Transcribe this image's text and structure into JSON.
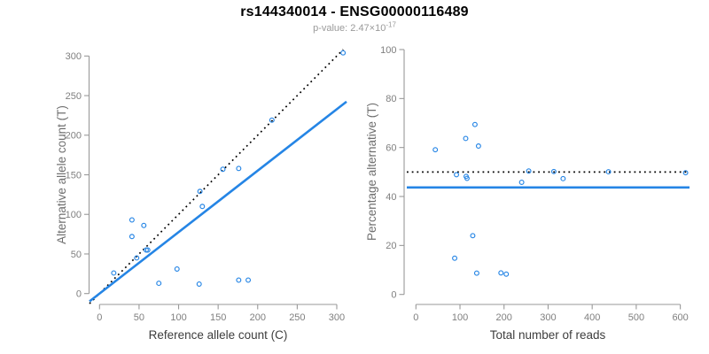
{
  "title": "rs144340014 - ENSG00000116489",
  "subtitle": {
    "text": "p-value: 2.47×10",
    "exponent": "-17"
  },
  "colors": {
    "accent_blue": "#2585E5",
    "dotted_black": "#000000",
    "axis_line": "#999999",
    "tick_label": "#7f7f7f",
    "x_axis_title": "#3d3d3d",
    "y_axis_title": "#6f6f6f",
    "subtitle_gray": "#9a9a9a",
    "title_black": "#000000"
  },
  "chart_data": [
    {
      "type": "scatter",
      "name": "allele-counts-panel",
      "title": "",
      "xlabel": "Reference allele count (C)",
      "ylabel": "Alternative allele count (T)",
      "xlim": [
        0,
        300
      ],
      "ylim": [
        0,
        300
      ],
      "xticks": [
        0,
        50,
        100,
        150,
        200,
        250,
        300
      ],
      "yticks": [
        0,
        50,
        100,
        150,
        200,
        250,
        300
      ],
      "grid": false,
      "legend": "none",
      "points": [
        [
          18,
          26
        ],
        [
          41,
          72
        ],
        [
          41,
          93
        ],
        [
          47,
          45
        ],
        [
          56,
          86
        ],
        [
          59,
          55
        ],
        [
          61,
          55
        ],
        [
          75,
          13
        ],
        [
          98,
          31
        ],
        [
          126,
          12
        ],
        [
          127,
          129
        ],
        [
          130,
          110
        ],
        [
          156,
          157
        ],
        [
          176,
          17
        ],
        [
          176,
          158
        ],
        [
          188,
          17
        ],
        [
          218,
          219
        ],
        [
          308,
          304
        ]
      ],
      "lines": [
        {
          "name": "identity-line",
          "kind": "abline",
          "slope": 1,
          "intercept": 0,
          "style": "dotted",
          "color": "#000000"
        },
        {
          "name": "fitted-ratio-line",
          "kind": "abline",
          "slope": 0.776,
          "intercept": 0,
          "style": "solid",
          "color": "#2585E5"
        }
      ]
    },
    {
      "type": "scatter",
      "name": "percentage-panel",
      "title": "",
      "xlabel": "Total number of reads",
      "ylabel": "Percentage alternative (T)",
      "xlim": [
        0,
        600
      ],
      "ylim": [
        0,
        100
      ],
      "xticks": [
        0,
        100,
        200,
        300,
        400,
        500,
        600
      ],
      "yticks": [
        0,
        20,
        40,
        60,
        80,
        100
      ],
      "grid": false,
      "legend": "none",
      "points": [
        [
          44,
          59.1
        ],
        [
          92,
          48.9
        ],
        [
          113,
          63.7
        ],
        [
          114,
          48.2
        ],
        [
          116,
          47.4
        ],
        [
          88,
          14.8
        ],
        [
          129,
          24.0
        ],
        [
          134,
          69.4
        ],
        [
          138,
          8.7
        ],
        [
          142,
          60.6
        ],
        [
          193,
          8.8
        ],
        [
          205,
          8.3
        ],
        [
          240,
          45.8
        ],
        [
          256,
          50.4
        ],
        [
          313,
          50.2
        ],
        [
          334,
          47.3
        ],
        [
          437,
          50.1
        ],
        [
          612,
          49.7
        ]
      ],
      "lines": [
        {
          "name": "expected-50-percent-line",
          "kind": "hline",
          "value": 50,
          "style": "dotted",
          "color": "#000000"
        },
        {
          "name": "fitted-percentage-line",
          "kind": "hline",
          "value": 43.7,
          "style": "solid",
          "color": "#2585E5"
        }
      ]
    }
  ]
}
